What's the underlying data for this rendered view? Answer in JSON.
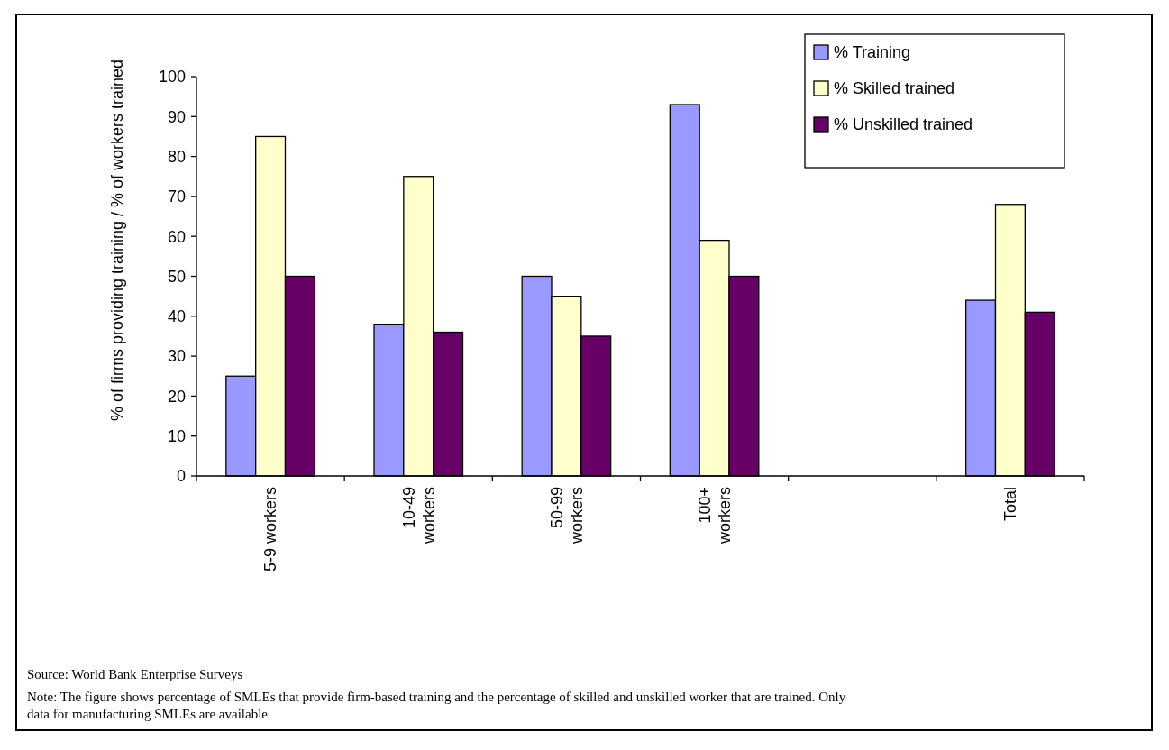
{
  "chart_data": {
    "type": "bar",
    "ylabel": "% of firms providing training / % of workers trained",
    "categories": [
      "5-9 workers",
      "10-49 workers",
      "50-99 workers",
      "100+ workers",
      null,
      "Total"
    ],
    "series": [
      {
        "name": "% Training",
        "color": "#9999ff",
        "values": [
          25,
          38,
          50,
          93,
          null,
          44
        ]
      },
      {
        "name": "% Skilled trained",
        "color": "#ffffcc",
        "values": [
          85,
          75,
          45,
          59,
          null,
          68
        ]
      },
      {
        "name": "% Unskilled trained",
        "color": "#660066",
        "values": [
          50,
          36,
          35,
          50,
          null,
          41
        ]
      }
    ],
    "ylim": [
      0,
      100
    ],
    "yticks": [
      0,
      10,
      20,
      30,
      40,
      50,
      60,
      70,
      80,
      90,
      100
    ],
    "grid": false,
    "legend": "top right",
    "annotations": [
      "Source: World Bank Enterprise Surveys",
      "Note: The figure shows percentage of SMLEs that provide firm-based training and the percentage of skilled and unskilled worker that are trained.  Only data for manufacturing SMLEs are available"
    ]
  }
}
